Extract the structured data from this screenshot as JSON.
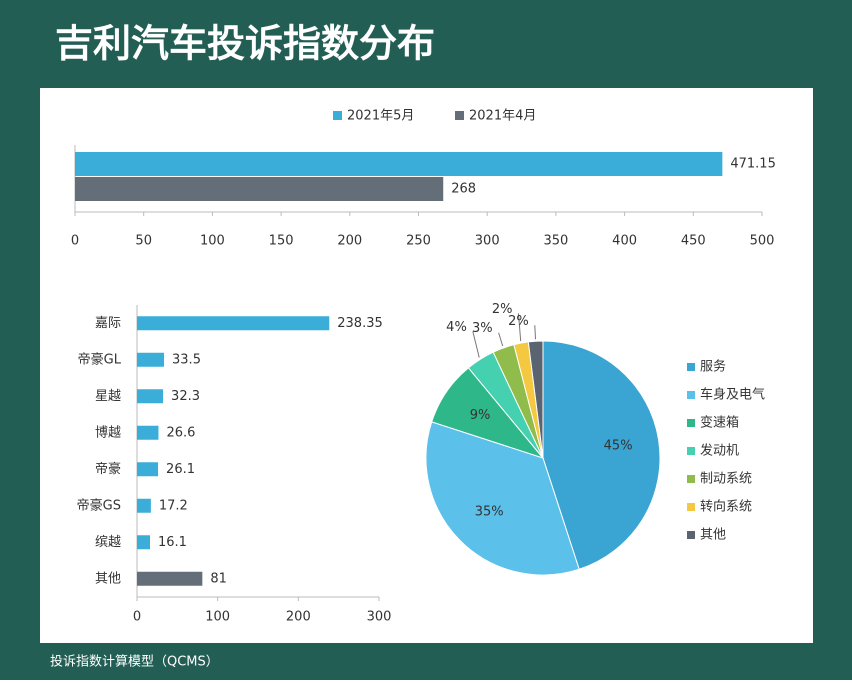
{
  "title": "吉利汽车投诉指数分布",
  "footer": "投诉指数计算模型（QCMS）",
  "chart_data": [
    {
      "type": "hbar",
      "categories": [
        null
      ],
      "series": [
        {
          "name": "2021年5月",
          "color": "#3aaed8",
          "values": [
            471.15
          ]
        },
        {
          "name": "2021年4月",
          "color": "#646e78",
          "values": [
            268
          ]
        }
      ],
      "xlim": [
        0,
        500
      ],
      "xticks": [
        0,
        50,
        100,
        150,
        200,
        250,
        300,
        350,
        400,
        450,
        500
      ]
    },
    {
      "type": "hbar",
      "categories": [
        "嘉际",
        "帝豪GL",
        "星越",
        "博越",
        "帝豪",
        "帝豪GS",
        "缤越",
        "其他"
      ],
      "values": [
        238.35,
        33.5,
        32.3,
        26.6,
        26.1,
        17.2,
        16.1,
        81
      ],
      "colors": [
        "#3aaed8",
        "#3aaed8",
        "#3aaed8",
        "#3aaed8",
        "#3aaed8",
        "#3aaed8",
        "#3aaed8",
        "#646e78"
      ],
      "xlim": [
        0,
        300
      ],
      "xticks": [
        0,
        100,
        200,
        300
      ]
    },
    {
      "type": "pie",
      "categories": [
        "服务",
        "车身及电气",
        "变速箱",
        "发动机",
        "制动系统",
        "转向系统",
        "其他"
      ],
      "values": [
        45,
        35,
        9,
        4,
        3,
        2,
        2
      ],
      "value_labels": [
        "45%",
        "35%",
        "9%",
        "4%",
        "3%",
        "2%",
        "2%"
      ],
      "colors": [
        "#3aa5d2",
        "#5bc0ea",
        "#2eb88a",
        "#45d0b0",
        "#8fbc4a",
        "#f5c842",
        "#5a6470"
      ]
    }
  ]
}
